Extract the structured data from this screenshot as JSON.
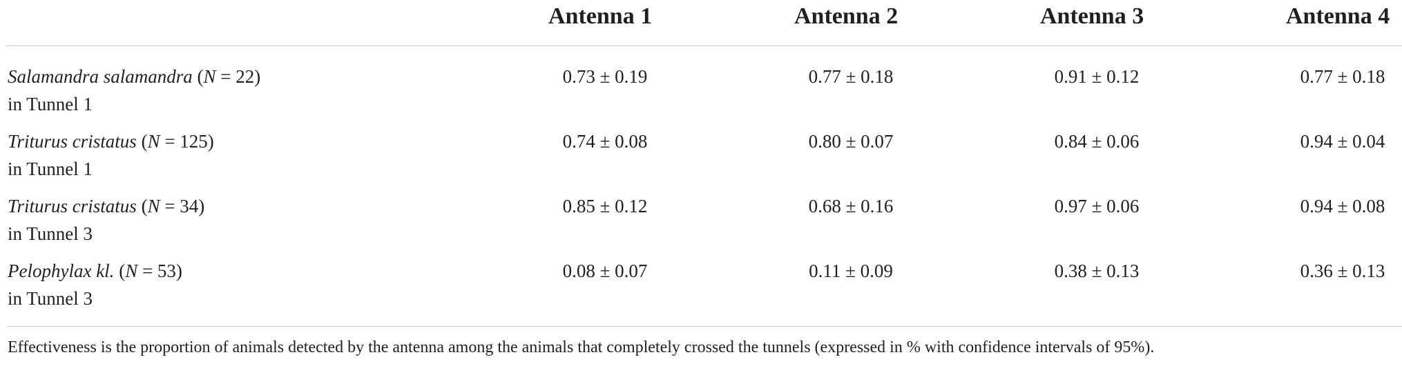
{
  "table": {
    "columns": [
      "Antenna 1",
      "Antenna 2",
      "Antenna 3",
      "Antenna 4"
    ],
    "rows": [
      {
        "species": "Salamandra salamandra",
        "n_open": " (",
        "n_var": "N",
        "n_value": " = 22)",
        "location": "in Tunnel 1",
        "values": [
          "0.73 ± 0.19",
          "0.77 ± 0.18",
          "0.91 ± 0.12",
          "0.77 ± 0.18"
        ]
      },
      {
        "species": "Triturus cristatus",
        "n_open": " (",
        "n_var": "N",
        "n_value": " = 125)",
        "location": "in Tunnel 1",
        "values": [
          "0.74 ± 0.08",
          "0.80 ± 0.07",
          "0.84 ± 0.06",
          "0.94 ± 0.04"
        ]
      },
      {
        "species": "Triturus cristatus",
        "n_open": " (",
        "n_var": "N",
        "n_value": " = 34)",
        "location": "in Tunnel 3",
        "values": [
          "0.85 ± 0.12",
          "0.68 ± 0.16",
          "0.97 ± 0.06",
          "0.94 ± 0.08"
        ]
      },
      {
        "species": "Pelophylax kl.",
        "n_open": " (",
        "n_var": "N",
        "n_value": " = 53)",
        "location": "in Tunnel 3",
        "values": [
          "0.08 ± 0.07",
          "0.11 ± 0.09",
          "0.38 ± 0.13",
          "0.36 ± 0.13"
        ]
      }
    ],
    "footnote": "Effectiveness is the proportion of animals detected by the antenna among the animals that completely crossed the tunnels (expressed in % with confidence intervals of 95%)."
  }
}
